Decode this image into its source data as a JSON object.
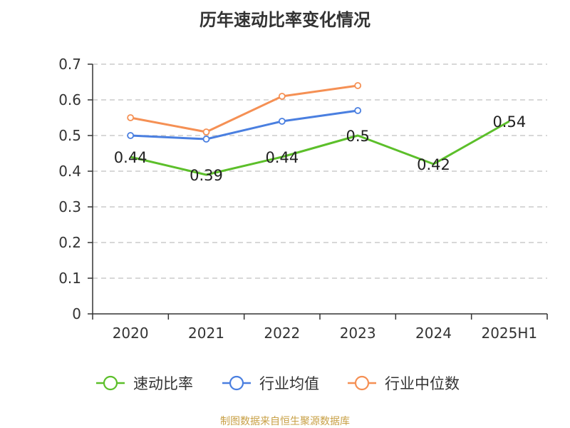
{
  "title": "历年速动比率变化情况",
  "source": "制图数据来自恒生聚源数据库",
  "chart_data": {
    "type": "line",
    "categories": [
      "2020",
      "2021",
      "2022",
      "2023",
      "2024",
      "2025H1"
    ],
    "ylim": [
      0,
      0.7
    ],
    "yticks": [
      "0",
      "0.1",
      "0.2",
      "0.3",
      "0.4",
      "0.5",
      "0.6",
      "0.7"
    ],
    "grid": "dashed horizontal",
    "legend_position": "bottom",
    "series": [
      {
        "name": "速动比率",
        "color": "#5cbf2a",
        "marker": "none",
        "show_labels": true,
        "values": [
          0.44,
          0.39,
          0.44,
          0.5,
          0.42,
          0.54
        ],
        "labels": [
          "0.44",
          "0.39",
          "0.44",
          "0.5",
          "0.42",
          "0.54"
        ]
      },
      {
        "name": "行业均值",
        "color": "#4a7fe0",
        "marker": "hollow-circle",
        "show_labels": false,
        "values": [
          0.5,
          0.49,
          0.54,
          0.57,
          null,
          null
        ]
      },
      {
        "name": "行业中位数",
        "color": "#f59054",
        "marker": "hollow-circle",
        "show_labels": false,
        "values": [
          0.55,
          0.51,
          0.61,
          0.64,
          null,
          null
        ]
      }
    ]
  }
}
